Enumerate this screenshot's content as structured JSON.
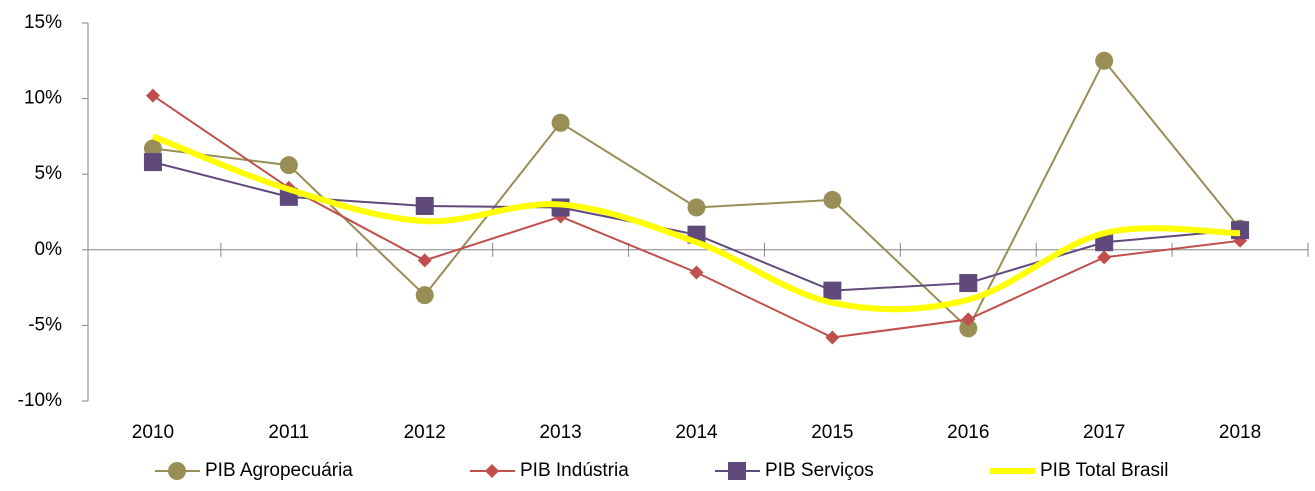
{
  "chart_data": {
    "type": "line",
    "categories": [
      "2010",
      "2011",
      "2012",
      "2013",
      "2014",
      "2015",
      "2016",
      "2017",
      "2018"
    ],
    "series": [
      {
        "name": "PIB Agropecuária",
        "color": "#998e55",
        "marker": "circle",
        "values": [
          6.7,
          5.6,
          -3.0,
          8.4,
          2.8,
          3.3,
          -5.2,
          12.5,
          1.4
        ]
      },
      {
        "name": "PIB Indústria",
        "color": "#c0504d",
        "marker": "diamond",
        "values": [
          10.2,
          4.1,
          -0.7,
          2.2,
          -1.5,
          -5.8,
          -4.6,
          -0.5,
          0.6
        ]
      },
      {
        "name": "PIB Serviços",
        "color": "#604a7b",
        "marker": "square",
        "values": [
          5.8,
          3.5,
          2.9,
          2.8,
          1.0,
          -2.7,
          -2.2,
          0.5,
          1.3
        ]
      },
      {
        "name": "PIB Total Brasil",
        "color": "#ffff00",
        "smooth": true,
        "values": [
          7.5,
          4.0,
          1.9,
          3.0,
          0.5,
          -3.5,
          -3.3,
          1.1,
          1.1
        ]
      }
    ],
    "ylim": [
      -10,
      15
    ],
    "yticks": [
      {
        "value": -10,
        "label": "-10%"
      },
      {
        "value": -5,
        "label": "-5%"
      },
      {
        "value": 0,
        "label": "0%"
      },
      {
        "value": 5,
        "label": "5%"
      },
      {
        "value": 10,
        "label": "10%"
      },
      {
        "value": 15,
        "label": "15%"
      }
    ],
    "legend": "bottom"
  }
}
